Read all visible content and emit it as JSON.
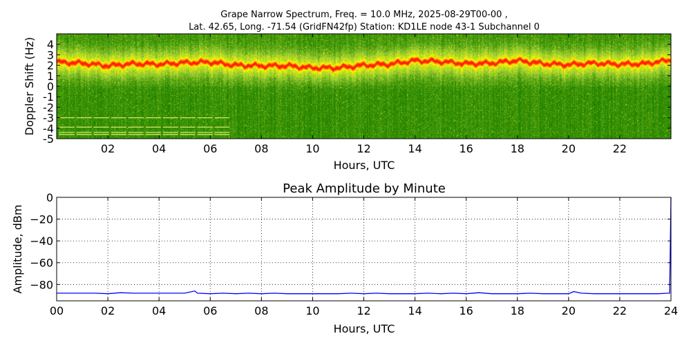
{
  "figure": {
    "title_line1": "Grape Narrow Spectrum, Freq. = 10.0 MHz, 2025-08-29T00-00 ,",
    "title_line2": "Lat.  42.65, Long. -71.54 (GridFN42fp) Station: KD1LE node 43-1 Subchannel 0"
  },
  "chart_data": [
    {
      "type": "heatmap",
      "xlabel": "Hours, UTC",
      "ylabel": "Doppler Shift (Hz)",
      "xlim": [
        0,
        24
      ],
      "ylim": [
        -5,
        5
      ],
      "x_ticks": [
        {
          "value": 2,
          "label": "02"
        },
        {
          "value": 4,
          "label": "04"
        },
        {
          "value": 6,
          "label": "06"
        },
        {
          "value": 8,
          "label": "08"
        },
        {
          "value": 10,
          "label": "10"
        },
        {
          "value": 12,
          "label": "12"
        },
        {
          "value": 14,
          "label": "14"
        },
        {
          "value": 16,
          "label": "16"
        },
        {
          "value": 18,
          "label": "18"
        },
        {
          "value": 20,
          "label": "20"
        },
        {
          "value": 22,
          "label": "22"
        }
      ],
      "y_ticks": [
        {
          "value": 4,
          "label": "4"
        },
        {
          "value": 3,
          "label": "3"
        },
        {
          "value": 2,
          "label": "2"
        },
        {
          "value": 1,
          "label": "1"
        },
        {
          "value": 0,
          "label": "0"
        },
        {
          "value": -1,
          "label": "-1"
        },
        {
          "value": -2,
          "label": "-2"
        },
        {
          "value": -3,
          "label": "-3"
        },
        {
          "value": -4,
          "label": "-4"
        },
        {
          "value": -5,
          "label": "-5"
        }
      ],
      "grid": false,
      "colormap": [
        "#006400",
        "#2e8b00",
        "#9acd32",
        "#ffff00",
        "#ff8c00",
        "#ff2000"
      ],
      "doppler_trace": {
        "hours": [
          0,
          1,
          2,
          3,
          4,
          5,
          6,
          7,
          8,
          9,
          10,
          11,
          12,
          13,
          14,
          15,
          16,
          17,
          18,
          19,
          20,
          21,
          22,
          23,
          24
        ],
        "doppler_hz": [
          2.3,
          2.2,
          1.95,
          2.15,
          2.1,
          2.25,
          2.3,
          2.0,
          1.95,
          1.95,
          1.75,
          1.75,
          2.0,
          2.1,
          2.45,
          2.35,
          2.15,
          2.2,
          2.45,
          2.15,
          2.05,
          2.2,
          2.1,
          2.15,
          2.5
        ]
      },
      "interference_lines": {
        "hz": [
          -3.0,
          -3.9,
          -4.4,
          -4.6
        ],
        "hours_start": 0.1,
        "hours_end": 6.75
      }
    },
    {
      "type": "line",
      "title": "Peak Amplitude by Minute",
      "xlabel": "Hours, UTC",
      "ylabel": "Amplitude, dBm",
      "xlim": [
        0,
        24
      ],
      "ylim": [
        -95,
        0
      ],
      "grid": true,
      "x_ticks": [
        {
          "value": 0,
          "label": "00"
        },
        {
          "value": 2,
          "label": "02"
        },
        {
          "value": 4,
          "label": "04"
        },
        {
          "value": 6,
          "label": "06"
        },
        {
          "value": 8,
          "label": "08"
        },
        {
          "value": 10,
          "label": "10"
        },
        {
          "value": 12,
          "label": "12"
        },
        {
          "value": 14,
          "label": "14"
        },
        {
          "value": 16,
          "label": "16"
        },
        {
          "value": 18,
          "label": "18"
        },
        {
          "value": 20,
          "label": "20"
        },
        {
          "value": 22,
          "label": "22"
        },
        {
          "value": 24,
          "label": "24"
        }
      ],
      "y_ticks": [
        {
          "value": 0,
          "label": "0"
        },
        {
          "value": -20,
          "label": "−20"
        },
        {
          "value": -40,
          "label": "−40"
        },
        {
          "value": -60,
          "label": "−60"
        },
        {
          "value": -80,
          "label": "−80"
        }
      ],
      "series": [
        {
          "color": "#0000ff",
          "x": [
            0,
            0.5,
            1,
            1.5,
            2,
            2.5,
            3,
            3.5,
            4,
            4.5,
            5,
            5.4,
            5.5,
            6,
            6.5,
            7,
            7.5,
            8,
            8.5,
            9,
            9.5,
            10,
            10.5,
            11,
            11.5,
            12,
            12.5,
            13,
            13.5,
            14,
            14.5,
            15,
            15.5,
            16,
            16.5,
            17,
            17.5,
            18,
            18.5,
            19,
            19.5,
            20,
            20.2,
            20.5,
            21,
            21.5,
            22,
            22.5,
            23,
            23.5,
            23.9,
            23.95,
            24
          ],
          "y": [
            -88,
            -88,
            -88,
            -88,
            -88.5,
            -87.5,
            -88,
            -88,
            -88,
            -88,
            -88,
            -86,
            -88,
            -88.5,
            -88,
            -88.5,
            -88,
            -88.5,
            -88,
            -88.5,
            -88.5,
            -88.5,
            -88.5,
            -88.5,
            -88,
            -88.5,
            -88,
            -88.5,
            -88.5,
            -88.5,
            -88,
            -88.5,
            -88,
            -88.5,
            -87.5,
            -88.5,
            -88.5,
            -88.5,
            -88,
            -88.5,
            -88.5,
            -88.5,
            -86.5,
            -88,
            -88.5,
            -88.5,
            -88.5,
            -88.5,
            -88.5,
            -88.5,
            -88,
            -88,
            0
          ]
        }
      ]
    }
  ]
}
